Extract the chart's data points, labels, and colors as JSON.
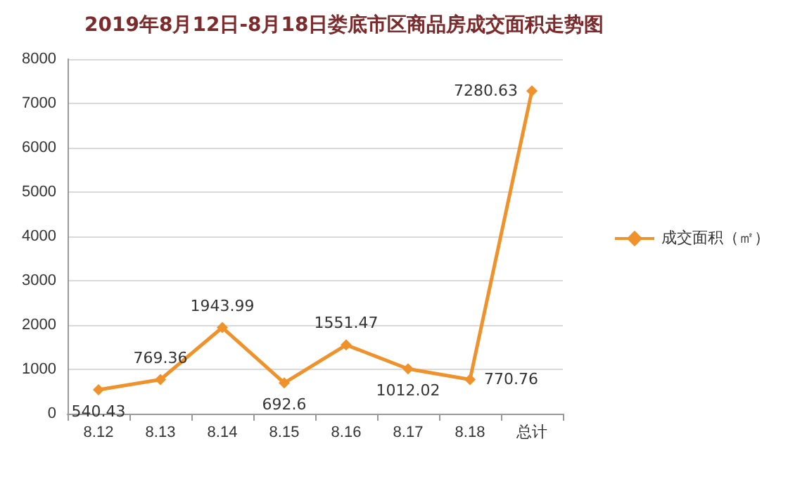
{
  "chart_data": {
    "type": "line",
    "title": "2019年8月12日-8月18日娄底市区商品房成交面积走势图",
    "categories": [
      "8.12",
      "8.13",
      "8.14",
      "8.15",
      "8.16",
      "8.17",
      "8.18",
      "总计"
    ],
    "series": [
      {
        "name": "成交面积（㎡）",
        "color": "#f0922b",
        "values": [
          540.43,
          769.36,
          1943.99,
          692.6,
          1551.47,
          1012.02,
          770.76,
          7280.63
        ]
      }
    ],
    "ylim": [
      0,
      8000
    ],
    "yticks": [
      0,
      1000,
      2000,
      3000,
      4000,
      5000,
      6000,
      7000,
      8000
    ],
    "grid": "y",
    "legend": "right",
    "marker": "diamond",
    "data_labels": true
  }
}
